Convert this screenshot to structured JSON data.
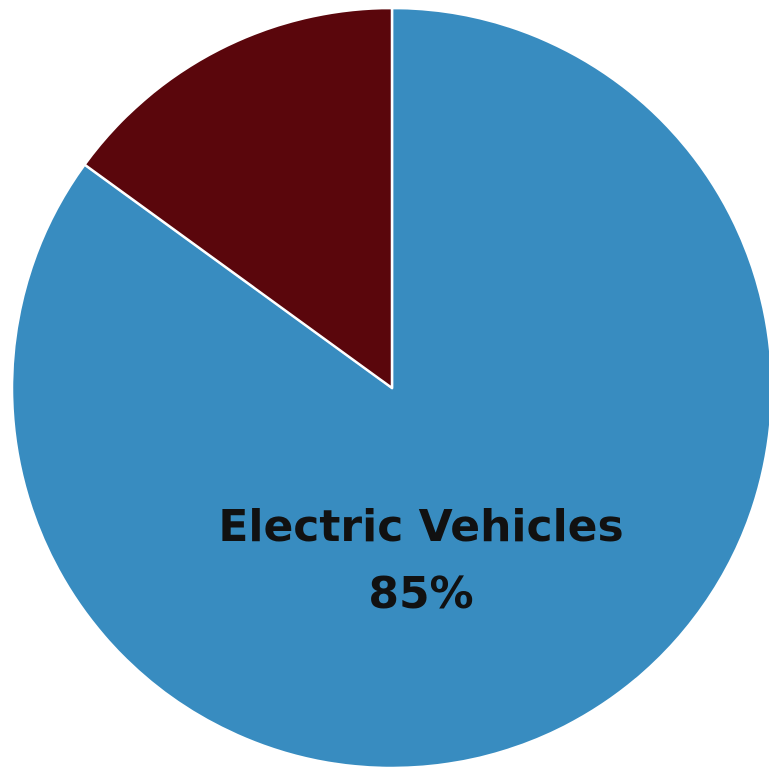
{
  "chart_data": {
    "type": "pie",
    "start_angle_deg": 0,
    "direction": "clockwise",
    "slices": [
      {
        "value": 85,
        "color": "#388CC0",
        "label": "Electric Vehicles",
        "value_label": "85%"
      },
      {
        "value": 15,
        "color": "#5A060C",
        "label": "",
        "value_label": ""
      }
    ],
    "slice_border_color": "#ffffff",
    "legend": "none"
  }
}
